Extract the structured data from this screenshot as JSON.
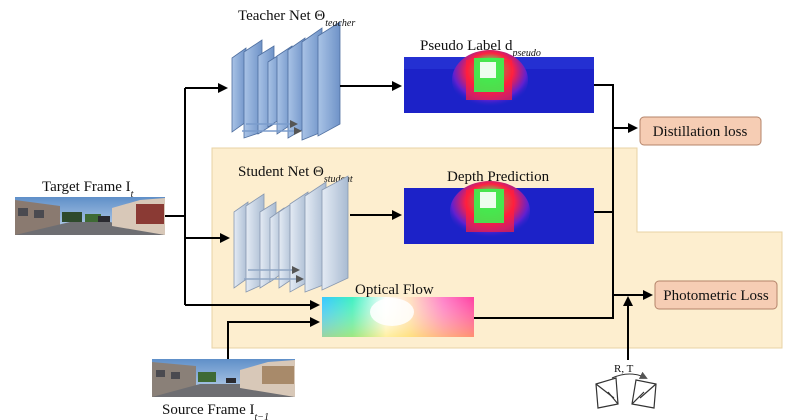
{
  "labels": {
    "teacher_prefix": "Teacher Net Θ",
    "teacher_sub": "teacher",
    "pseudo_prefix": "Pseudo Label d",
    "pseudo_sub": "pseudo",
    "student_prefix": "Student Net Θ",
    "student_sub": "student",
    "depth_prediction": "Depth Prediction",
    "target_prefix": "Target Frame I",
    "target_sub": "t",
    "optical_flow": "Optical Flow",
    "source_prefix": "Source Frame I",
    "source_sub": "t−1",
    "pose": "R, T"
  },
  "losses": {
    "distillation": "Distillation loss",
    "photometric": "Photometric Loss"
  },
  "colors": {
    "highlight_region": "#fdeecf",
    "loss_box_fill": "#f6cdb4",
    "loss_box_stroke": "#b4846a",
    "net_fill": "#8fb0dc",
    "net_fill_student": "#c9d6e6",
    "depth_bg": "#1c22c8"
  }
}
